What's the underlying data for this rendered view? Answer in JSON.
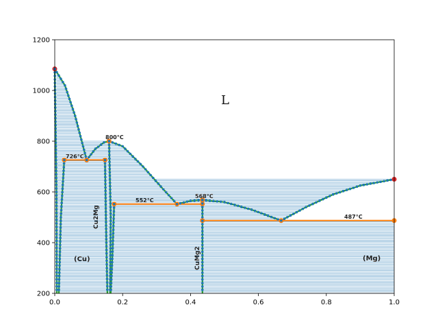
{
  "chart_data": {
    "type": "line",
    "title": "",
    "xlabel": "",
    "ylabel": "",
    "xlim": [
      0.0,
      1.0
    ],
    "ylim": [
      200,
      1200
    ],
    "x_ticks": [
      "0.0",
      "0.2",
      "0.4",
      "0.6",
      "0.8",
      "1.0"
    ],
    "y_ticks": [
      "200",
      "400",
      "600",
      "800",
      "1000",
      "1200"
    ],
    "grid": false,
    "legend": "none",
    "colors": {
      "liquidus": "#2ca02c",
      "points": "#1f77b4",
      "invariant": "#ff7f0e",
      "endpoint": "#d62728",
      "tieline": "#1f77b4"
    },
    "phase_labels": {
      "liquid": "L",
      "cu_solid": "(Cu)",
      "mg_solid": "(Mg)",
      "cu2mg": "Cu2Mg",
      "cumg2": "CuMg2"
    },
    "annotations": [
      "726°C",
      "800°C",
      "552°C",
      "568°C",
      "487°C"
    ],
    "series": [
      {
        "values": [
          [
            0.0,
            1085
          ],
          [
            0.03,
            1020
          ],
          [
            0.06,
            900
          ],
          [
            0.094,
            726
          ]
        ]
      },
      {
        "values": [
          [
            0.094,
            726
          ],
          [
            0.12,
            770
          ],
          [
            0.145,
            795
          ],
          [
            0.16,
            800
          ]
        ]
      },
      {
        "values": [
          [
            0.16,
            800
          ],
          [
            0.2,
            780
          ],
          [
            0.26,
            700
          ],
          [
            0.32,
            610
          ],
          [
            0.36,
            552
          ]
        ]
      },
      {
        "values": [
          [
            0.36,
            552
          ],
          [
            0.4,
            565
          ],
          [
            0.435,
            568
          ]
        ]
      },
      {
        "values": [
          [
            0.435,
            568
          ],
          [
            0.5,
            560
          ],
          [
            0.58,
            530
          ],
          [
            0.667,
            487
          ]
        ]
      },
      {
        "values": [
          [
            0.667,
            487
          ],
          [
            0.74,
            540
          ],
          [
            0.82,
            590
          ],
          [
            0.9,
            625
          ],
          [
            1.0,
            650
          ]
        ]
      },
      {
        "values": [
          [
            0.0,
            1085
          ],
          [
            0.005,
            600
          ],
          [
            0.006,
            200
          ]
        ]
      },
      {
        "values": [
          [
            0.028,
            726
          ],
          [
            0.018,
            500
          ],
          [
            0.012,
            200
          ]
        ]
      },
      {
        "values": [
          [
            0.148,
            726
          ],
          [
            0.152,
            400
          ],
          [
            0.155,
            200
          ]
        ]
      },
      {
        "values": [
          [
            0.16,
            800
          ],
          [
            0.165,
            500
          ],
          [
            0.163,
            200
          ]
        ]
      },
      {
        "values": [
          [
            0.175,
            552
          ],
          [
            0.17,
            350
          ],
          [
            0.165,
            200
          ]
        ]
      },
      {
        "values": [
          [
            0.435,
            568
          ],
          [
            0.435,
            200
          ]
        ]
      }
    ],
    "invariant_lines": [
      {
        "x0": 0.028,
        "x1": 0.148,
        "y": 726,
        "points": [
          0.028,
          0.094,
          0.148
        ]
      },
      {
        "x0": 0.175,
        "x1": 0.435,
        "y": 552,
        "points": [
          0.175,
          0.36,
          0.435
        ]
      },
      {
        "x0": 0.435,
        "x1": 1.0,
        "y": 487,
        "points": [
          0.435,
          0.667,
          1.0
        ]
      }
    ],
    "special_points": [
      {
        "x": 0.0,
        "y": 1085,
        "kind": "endpoint"
      },
      {
        "x": 1.0,
        "y": 650,
        "kind": "endpoint"
      },
      {
        "x": 0.16,
        "y": 800,
        "kind": "invariant"
      },
      {
        "x": 0.435,
        "y": 568,
        "kind": "invariant"
      }
    ]
  }
}
